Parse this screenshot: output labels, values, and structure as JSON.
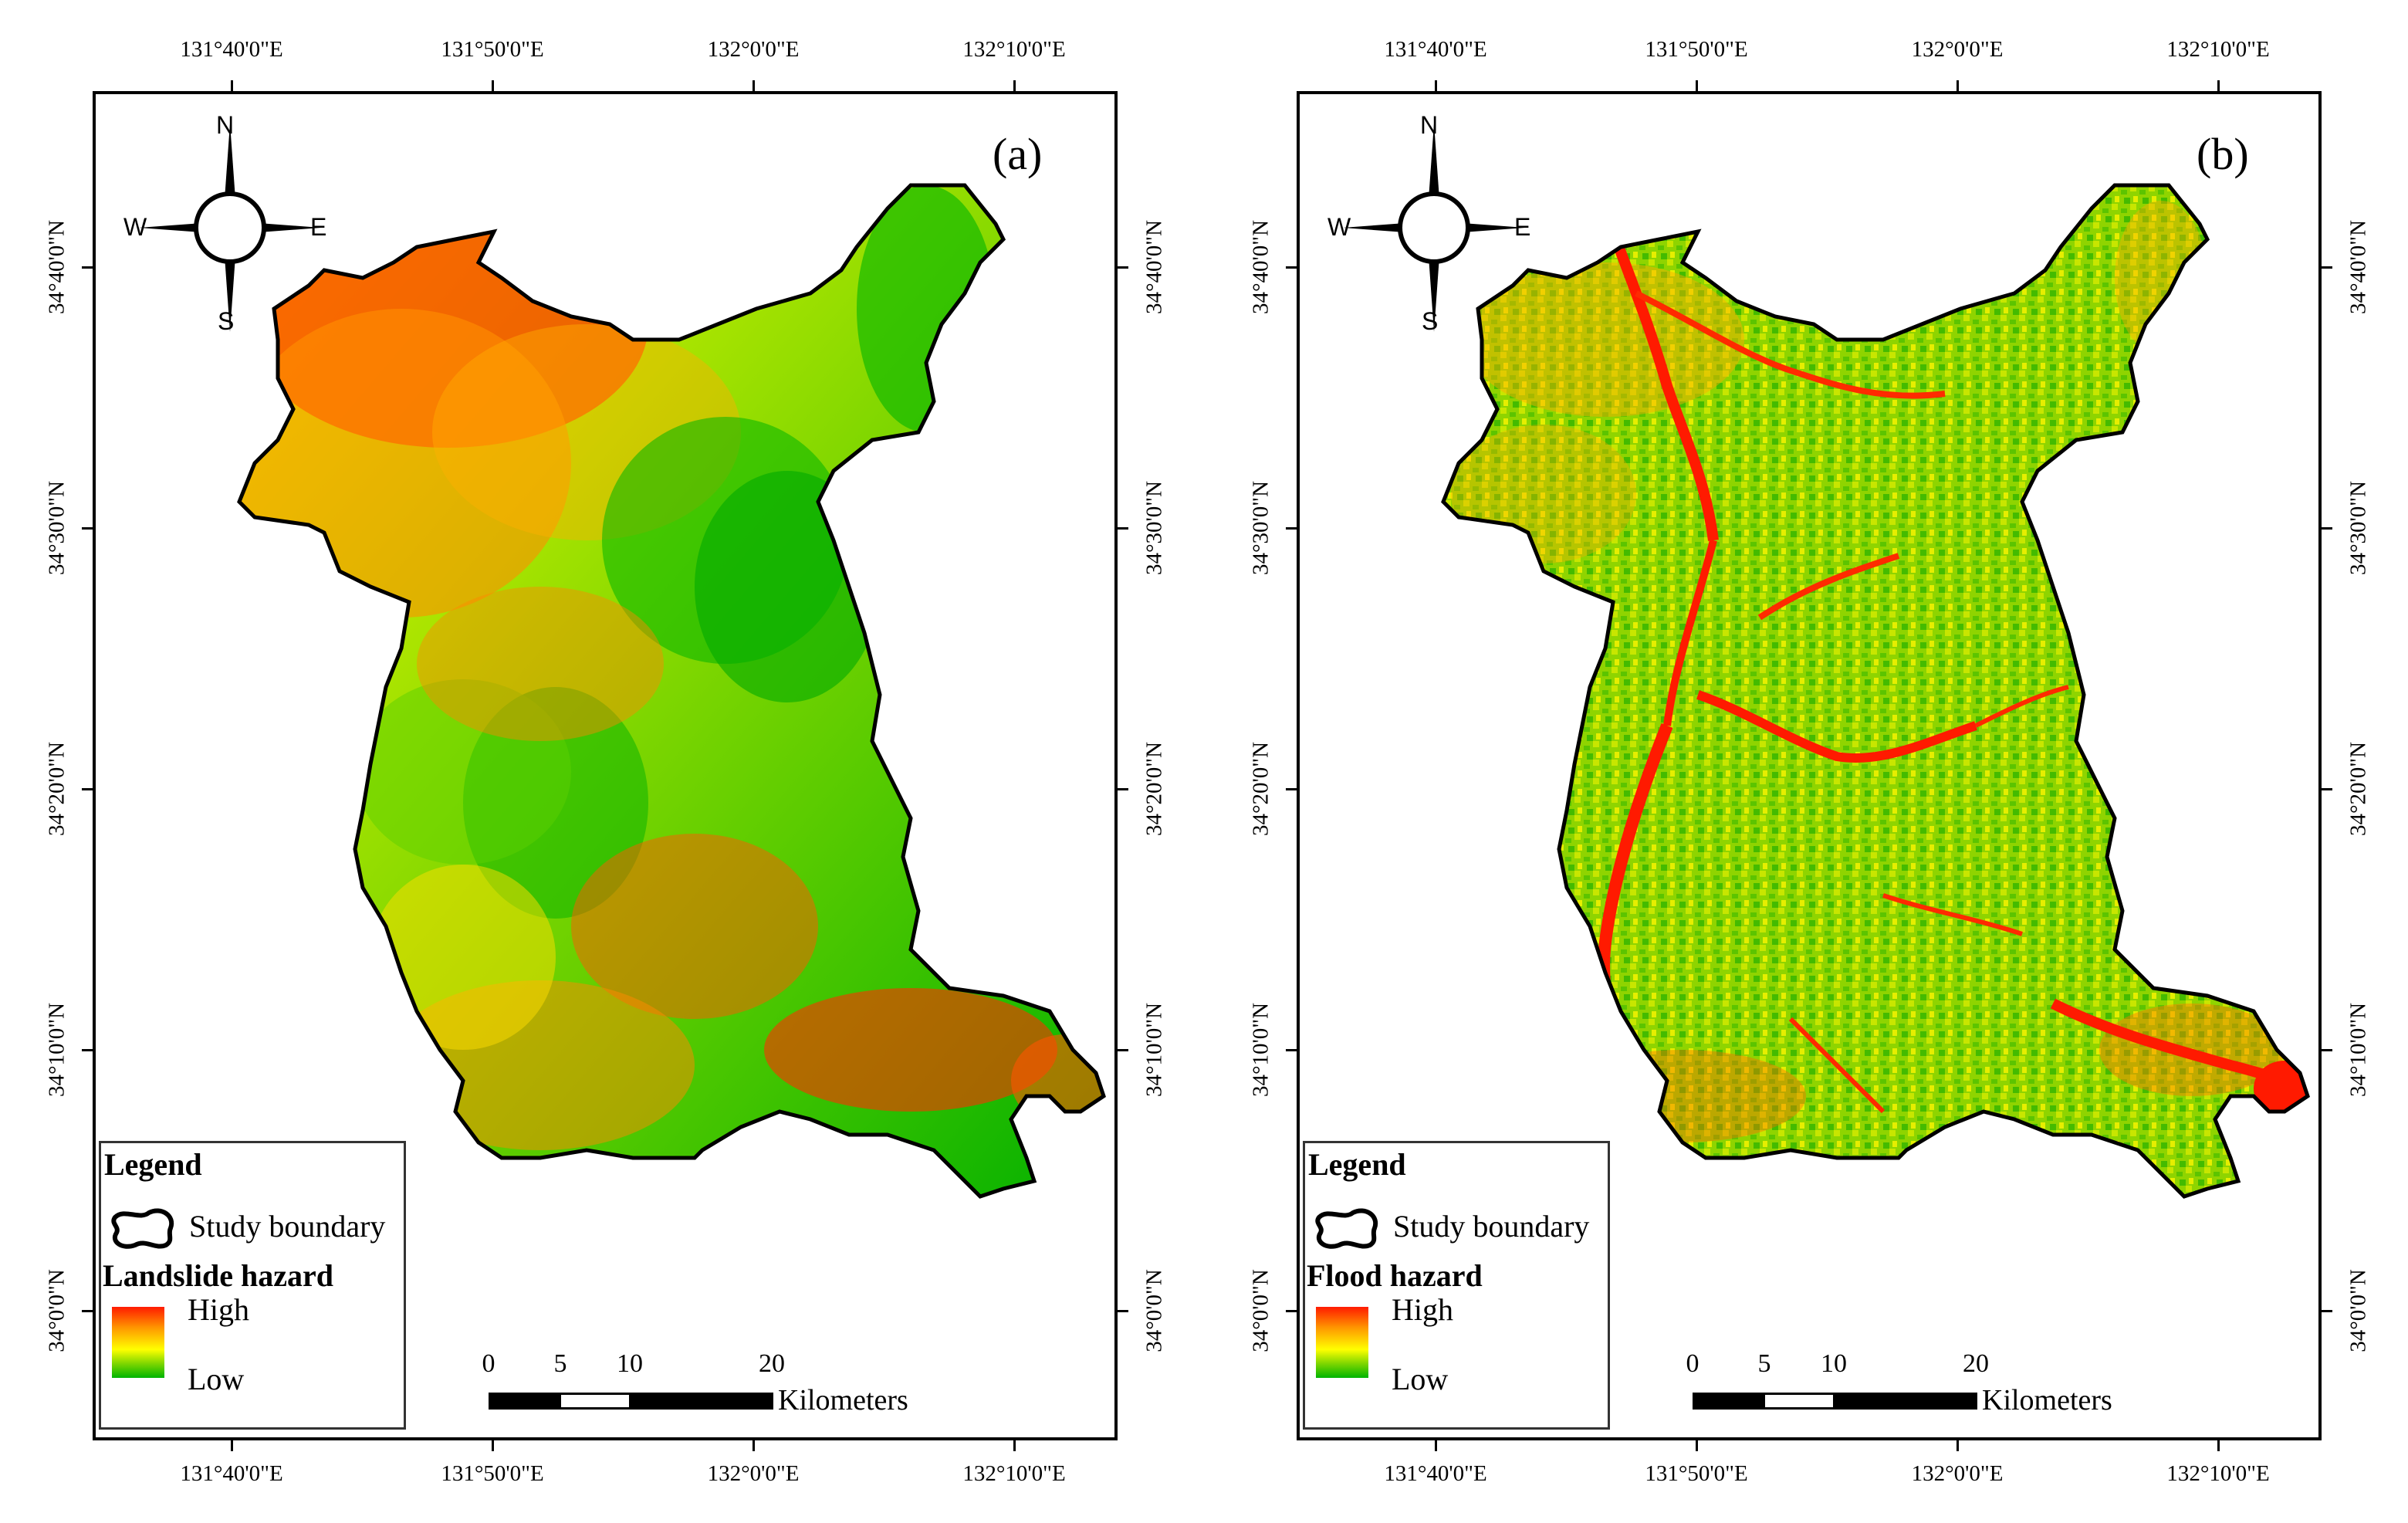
{
  "coords": {
    "top_ticks": [
      "131°40'0\"E",
      "131°50'0\"E",
      "132°0'0\"E",
      "132°10'0\"E"
    ],
    "side_ticks": [
      "34°40'0\"N",
      "34°30'0\"N",
      "34°20'0\"N",
      "34°10'0\"N",
      "34°0'0\"N"
    ]
  },
  "compass": {
    "north": "N",
    "south": "S",
    "east": "E",
    "west": "W"
  },
  "scale": {
    "ticks": [
      "0",
      "5",
      "10",
      "20"
    ],
    "unit": "Kilometers"
  },
  "panels": [
    {
      "label": "(a)",
      "legend": {
        "title": "Legend",
        "boundary_label": "Study boundary",
        "hazard_title": "Landslide hazard",
        "high": "High",
        "low": "Low"
      },
      "colors": {
        "high": "#ff1a00",
        "mid": "#ffff00",
        "low": "#00b400"
      }
    },
    {
      "label": "(b)",
      "legend": {
        "title": "Legend",
        "boundary_label": "Study boundary",
        "hazard_title": "Flood hazard",
        "high": "High",
        "low": "Low"
      },
      "colors": {
        "high": "#ff1a00",
        "mid": "#ffff00",
        "low": "#00b400"
      }
    }
  ]
}
